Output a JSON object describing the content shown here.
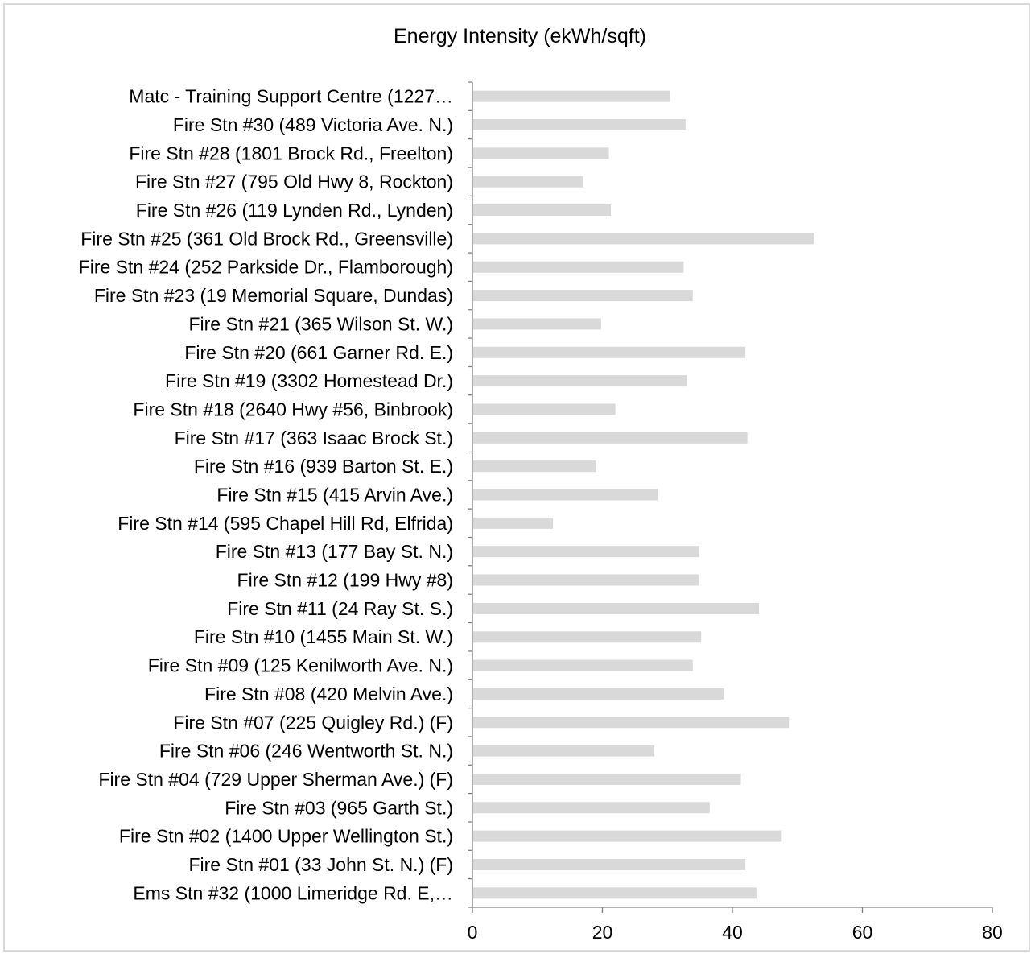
{
  "chart_data": {
    "type": "bar",
    "orientation": "horizontal",
    "title": "Energy Intensity (ekWh/sqft)",
    "xlabel": "",
    "ylabel": "",
    "xlim": [
      0,
      80
    ],
    "xticks": [
      0,
      20,
      40,
      60,
      80
    ],
    "grid": false,
    "legend": "none",
    "bar_color": "#d9d9d9",
    "categories": [
      "Matc - Training Support Centre (1227…",
      "Fire Stn #30 (489 Victoria Ave. N.)",
      "Fire Stn #28 (1801 Brock Rd., Freelton)",
      "Fire Stn #27 (795 Old Hwy 8, Rockton)",
      "Fire Stn #26 (119 Lynden Rd., Lynden)",
      "Fire Stn #25 (361 Old Brock Rd., Greensville)",
      "Fire Stn #24 (252 Parkside Dr., Flamborough)",
      "Fire Stn #23 (19 Memorial Square, Dundas)",
      "Fire Stn #21 (365 Wilson St. W.)",
      "Fire Stn #20 (661 Garner Rd. E.)",
      "Fire Stn #19 (3302 Homestead Dr.)",
      "Fire Stn #18 (2640 Hwy #56, Binbrook)",
      "Fire Stn #17 (363 Isaac Brock St.)",
      "Fire Stn #16 (939 Barton St. E.)",
      "Fire Stn #15 (415 Arvin Ave.)",
      "Fire Stn #14 (595 Chapel Hill Rd, Elfrida)",
      "Fire Stn #13 (177 Bay St. N.)",
      "Fire Stn #12 (199 Hwy #8)",
      "Fire Stn #11 (24 Ray St. S.)",
      "Fire Stn #10 (1455 Main St. W.)",
      "Fire Stn #09 (125 Kenilworth Ave. N.)",
      "Fire Stn #08 (420 Melvin Ave.)",
      "Fire Stn #07 (225 Quigley Rd.) (F)",
      "Fire Stn #06 (246 Wentworth St. N.)",
      "Fire Stn #04 (729 Upper Sherman Ave.) (F)",
      "Fire Stn #03 (965 Garth St.)",
      "Fire Stn #02 (1400 Upper Wellington St.)",
      "Fire Stn #01 (33 John St. N.) (F)",
      "Ems Stn #32 (1000 Limeridge Rd. E,…"
    ],
    "values": [
      30.4,
      32.8,
      21.0,
      17.1,
      21.3,
      52.6,
      32.5,
      33.9,
      19.8,
      42.0,
      33.0,
      22.0,
      42.3,
      19.0,
      28.5,
      12.4,
      34.9,
      34.9,
      44.1,
      35.2,
      33.9,
      38.7,
      48.7,
      28.0,
      41.3,
      36.5,
      47.6,
      42.0,
      43.7
    ]
  }
}
